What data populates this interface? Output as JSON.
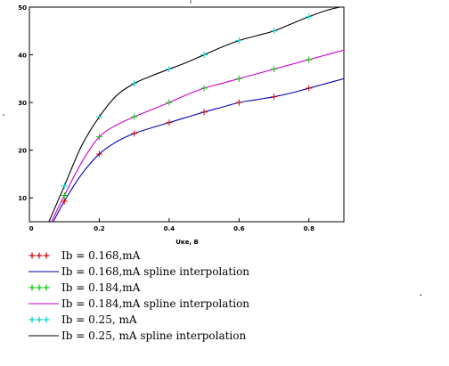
{
  "chart_data": {
    "type": "line",
    "title": "",
    "top_mark": "I",
    "xlabel": "Uке, В",
    "ylabel": "",
    "xlim": [
      0,
      0.9
    ],
    "ylim": [
      5,
      50
    ],
    "x_ticks": [
      0,
      0.2,
      0.4,
      0.6,
      0.8
    ],
    "x_tick_labels": [
      "0",
      "0.2",
      "0.4",
      "0.6",
      "0.8"
    ],
    "y_ticks": [
      10,
      20,
      30,
      40,
      50
    ],
    "y_tick_labels": [
      "10",
      "20",
      "30",
      "40",
      "50"
    ],
    "grid": false,
    "legend_position": "bottom-left",
    "series": [
      {
        "name": "Ib = 0.168,mA",
        "kind": "markers",
        "color": "#d40000",
        "x": [
          0.1,
          0.2,
          0.3,
          0.4,
          0.5,
          0.6,
          0.7,
          0.8
        ],
        "y": [
          9.3,
          19.2,
          23.5,
          25.8,
          28.0,
          30.0,
          31.2,
          33.0
        ]
      },
      {
        "name": "Ib = 0.168,mA spline interpolation",
        "kind": "line",
        "color": "#0000aa",
        "x": [
          0.05,
          0.1,
          0.15,
          0.2,
          0.25,
          0.3,
          0.35,
          0.4,
          0.45,
          0.5,
          0.55,
          0.6,
          0.65,
          0.7,
          0.75,
          0.8,
          0.85,
          0.9
        ],
        "y": [
          2.5,
          9.3,
          15.0,
          19.2,
          21.8,
          23.5,
          24.7,
          25.8,
          26.9,
          28.0,
          29.0,
          30.0,
          30.6,
          31.2,
          32.0,
          33.0,
          34.0,
          35.0
        ]
      },
      {
        "name": "Ib = 0.184,mA",
        "kind": "markers",
        "color": "#00cc00",
        "x": [
          0.1,
          0.2,
          0.3,
          0.4,
          0.5,
          0.6,
          0.7,
          0.8
        ],
        "y": [
          10.5,
          22.8,
          27.0,
          30.0,
          33.0,
          35.0,
          37.0,
          39.0
        ]
      },
      {
        "name": "Ib = 0.184,mA spline interpolation",
        "kind": "line",
        "color": "#cc00cc",
        "x": [
          0.05,
          0.1,
          0.15,
          0.2,
          0.25,
          0.3,
          0.35,
          0.4,
          0.45,
          0.5,
          0.55,
          0.6,
          0.65,
          0.7,
          0.75,
          0.8,
          0.85,
          0.9
        ],
        "y": [
          3.0,
          10.5,
          17.5,
          22.8,
          25.3,
          27.0,
          28.5,
          30.0,
          31.6,
          33.0,
          34.0,
          35.0,
          36.0,
          37.0,
          38.0,
          39.0,
          40.0,
          41.0
        ]
      },
      {
        "name": "Ib = 0.25, mA",
        "kind": "markers",
        "color": "#00d0d0",
        "x": [
          0.1,
          0.2,
          0.3,
          0.4,
          0.5,
          0.6,
          0.7,
          0.8
        ],
        "y": [
          12.5,
          27.0,
          34.0,
          37.0,
          40.0,
          43.0,
          45.0,
          48.0
        ]
      },
      {
        "name": "Ib = 0.25, mA spline interpolation",
        "kind": "line",
        "color": "#000000",
        "x": [
          0.05,
          0.1,
          0.15,
          0.2,
          0.25,
          0.3,
          0.35,
          0.4,
          0.45,
          0.5,
          0.55,
          0.6,
          0.65,
          0.7,
          0.75,
          0.8,
          0.85,
          0.9
        ],
        "y": [
          4.0,
          12.5,
          21.0,
          27.0,
          31.5,
          34.0,
          35.6,
          37.0,
          38.4,
          40.0,
          41.6,
          43.0,
          44.0,
          45.0,
          46.5,
          48.0,
          49.3,
          50.2
        ]
      }
    ]
  }
}
